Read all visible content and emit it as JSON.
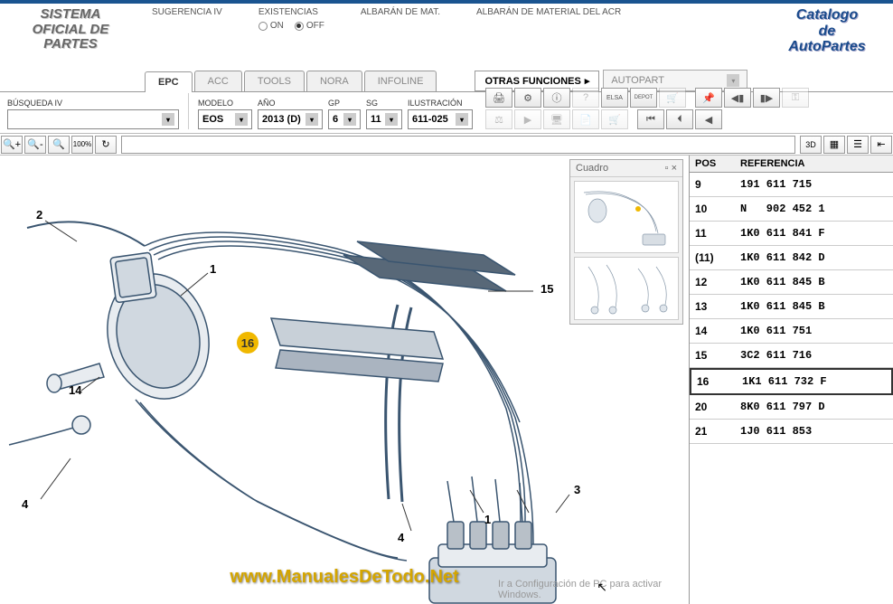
{
  "header": {
    "logo_left_l1": "SISTEMA",
    "logo_left_l2": "OFICIAL DE",
    "logo_left_l3": "PARTES",
    "sugerencia": "SUGERENCIA IV",
    "existencias": "EXISTENCIAS",
    "exist_on": "ON",
    "exist_off": "OFF",
    "albaran_mat": "ALBARÁN DE MAT.",
    "albaran_acr": "ALBARÁN DE MATERIAL DEL ACR",
    "logo_right_l1": "Catalogo",
    "logo_right_l2": "de",
    "logo_right_l3": "AutoPartes"
  },
  "tabs": {
    "epc": "EPC",
    "acc": "ACC",
    "tools": "TOOLS",
    "nora": "NORA",
    "infoline": "INFOLINE",
    "otras": "OTRAS FUNCIONES",
    "autopart": "AUTOPART"
  },
  "filters": {
    "busqueda_label": "BÚSQUEDA IV",
    "modelo_label": "MODELO",
    "modelo_value": "EOS",
    "ano_label": "AÑO",
    "ano_value": "2013 (D)",
    "gp_label": "GP",
    "gp_value": "6",
    "sg_label": "SG",
    "sg_value": "11",
    "ilustracion_label": "ILUSTRACIÓN",
    "ilustracion_value": "611-025"
  },
  "cuadro": {
    "title": "Cuadro"
  },
  "parts_table": {
    "pos_header": "POS",
    "ref_header": "REFERENCIA",
    "rows": [
      {
        "pos": "9",
        "ref": "191 611 715"
      },
      {
        "pos": "10",
        "ref": "N   902 452 1"
      },
      {
        "pos": "11",
        "ref": "1K0 611 841 F"
      },
      {
        "pos": "(11)",
        "ref": "1K0 611 842 D"
      },
      {
        "pos": "12",
        "ref": "1K0 611 845 B"
      },
      {
        "pos": "13",
        "ref": "1K0 611 845 B"
      },
      {
        "pos": "14",
        "ref": "1K0 611 751"
      },
      {
        "pos": "15",
        "ref": "3C2 611 716"
      },
      {
        "pos": "16",
        "ref": "1K1 611 732 F"
      },
      {
        "pos": "20",
        "ref": "8K0 611 797 D"
      },
      {
        "pos": "21",
        "ref": "1J0 611 853"
      }
    ]
  },
  "callouts": {
    "c1a": "1",
    "c2": "2",
    "c4a": "4",
    "c14": "14",
    "c15": "15",
    "c16": "16",
    "c1b": "1",
    "c3": "3",
    "c4b": "4"
  },
  "view_controls": {
    "threed": "3D"
  },
  "watermark": "www.ManualesDeTodo.Net",
  "activate_l1": "Ir a Configuración de PC para activar",
  "activate_l2": "Windows.",
  "colors": {
    "accent": "#1a5490",
    "highlight": "#f0b800",
    "diagram_line": "#3a5570"
  }
}
